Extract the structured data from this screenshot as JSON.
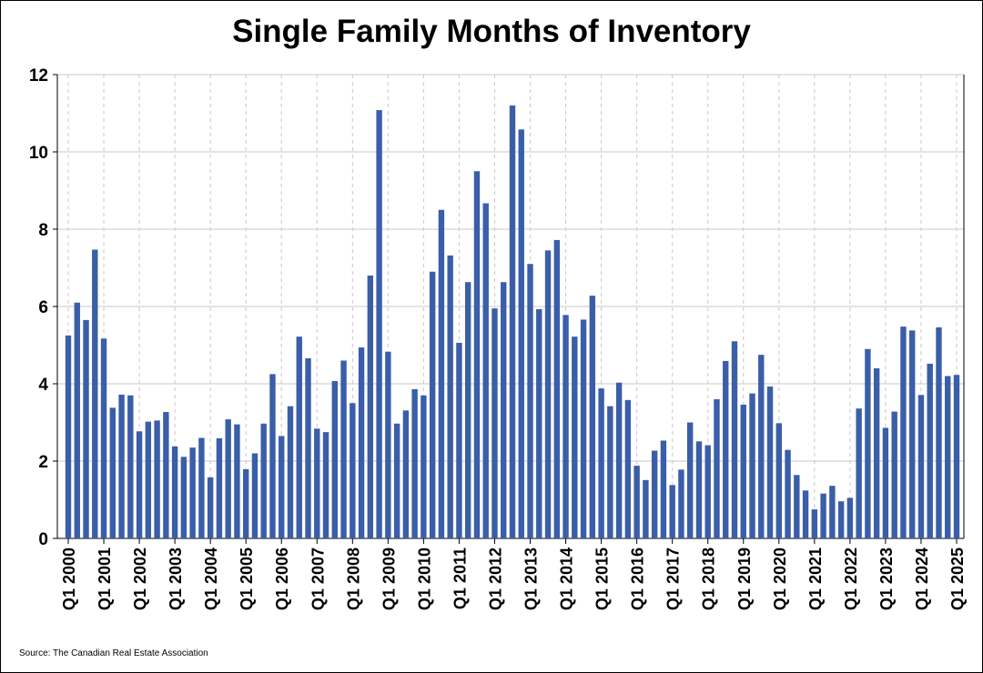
{
  "chart_data": {
    "type": "bar",
    "title": "Single Family Months of Inventory",
    "source": "Source: The Canadian Real Estate Association",
    "xlabel": "",
    "ylabel": "",
    "ylim": [
      0,
      12
    ],
    "yticks": [
      0,
      2,
      4,
      6,
      8,
      10,
      12
    ],
    "grid": true,
    "bar_color": "#3a5ea8",
    "quarter_labels": [
      "Q1 2000",
      "Q1 2001",
      "Q1 2002",
      "Q1 2003",
      "Q1 2004",
      "Q1 2005",
      "Q1 2006",
      "Q1 2007",
      "Q1 2008",
      "Q1 2009",
      "Q1 2010",
      "Q1 2011",
      "Q1 2012",
      "Q1 2013",
      "Q1 2014",
      "Q1 2015",
      "Q1 2016",
      "Q1 2017",
      "Q1 2018",
      "Q1 2019",
      "Q1 2020",
      "Q1 2021",
      "Q1 2022",
      "Q1 2023",
      "Q1 2024",
      "Q1 2025"
    ],
    "values": [
      5.25,
      6.1,
      5.65,
      7.47,
      5.17,
      3.38,
      3.72,
      3.7,
      2.77,
      3.02,
      3.05,
      3.27,
      2.38,
      2.11,
      2.35,
      2.6,
      1.58,
      2.59,
      3.08,
      2.95,
      1.79,
      2.2,
      2.97,
      4.25,
      2.65,
      3.42,
      5.22,
      4.66,
      2.84,
      2.75,
      4.07,
      4.6,
      3.5,
      4.94,
      6.8,
      11.08,
      4.83,
      2.97,
      3.31,
      3.86,
      3.7,
      6.9,
      8.5,
      7.32,
      5.06,
      6.63,
      9.5,
      8.67,
      5.95,
      6.63,
      11.2,
      10.58,
      7.1,
      5.93,
      7.45,
      7.72,
      5.78,
      5.22,
      5.66,
      6.28,
      3.88,
      3.42,
      4.03,
      3.58,
      1.88,
      1.51,
      2.27,
      2.53,
      1.38,
      1.78,
      3.0,
      2.51,
      2.41,
      3.6,
      4.59,
      5.1,
      3.46,
      3.75,
      4.75,
      3.93,
      2.98,
      2.29,
      1.64,
      1.24,
      0.75,
      1.16,
      1.36,
      0.96,
      1.05,
      3.36,
      4.9,
      4.4,
      2.86,
      3.28,
      5.48,
      5.38,
      3.71,
      4.52,
      5.46,
      4.2,
      4.23
    ]
  }
}
